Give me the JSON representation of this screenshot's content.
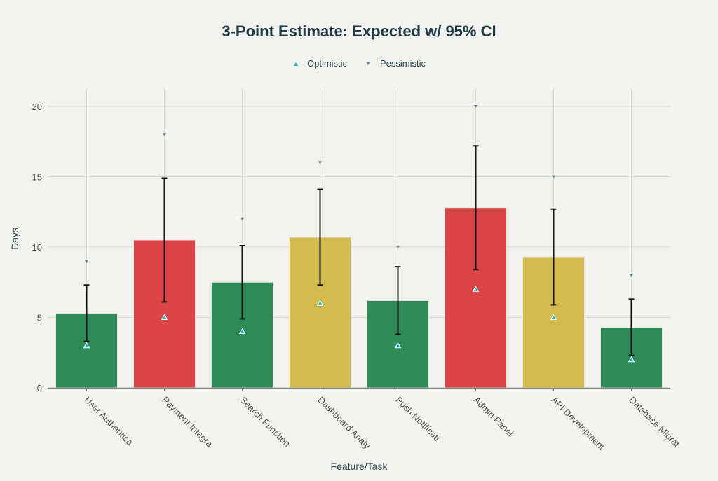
{
  "chart_data": {
    "type": "bar",
    "title": "3-Point Estimate: Expected w/ 95% CI",
    "xlabel": "Feature/Task",
    "ylabel": "Days",
    "ylim": [
      0,
      21.2
    ],
    "yticks": [
      0,
      5,
      10,
      15,
      20
    ],
    "grid": true,
    "legend_position": "top-center",
    "categories": [
      "User Authentica",
      "Payment Integra",
      "Search Function",
      "Dashboard Analy",
      "Push Notificati",
      "Admin Panel",
      "API Development",
      "Database Migrat"
    ],
    "expected": [
      5.3,
      10.5,
      7.5,
      10.7,
      6.2,
      12.8,
      9.3,
      4.3
    ],
    "ci_low": [
      3.3,
      6.1,
      4.9,
      7.3,
      3.8,
      8.4,
      5.9,
      2.3
    ],
    "ci_high": [
      7.3,
      14.9,
      10.1,
      14.1,
      8.6,
      17.2,
      12.7,
      6.3
    ],
    "bar_colors": [
      "#2e8b57",
      "#db4545",
      "#2e8b57",
      "#d2ba4c",
      "#2e8b57",
      "#db4545",
      "#d2ba4c",
      "#2e8b57"
    ],
    "series": [
      {
        "name": "Optimistic",
        "values": [
          3,
          5,
          4,
          6,
          3,
          7,
          5,
          2
        ],
        "color": "#1fb8cd",
        "marker": "triangle-up"
      },
      {
        "name": "Pessimistic",
        "values": [
          9,
          18,
          12,
          16,
          10,
          20,
          15,
          8
        ],
        "color": "#5d878f",
        "marker": "triangle-down"
      }
    ]
  }
}
